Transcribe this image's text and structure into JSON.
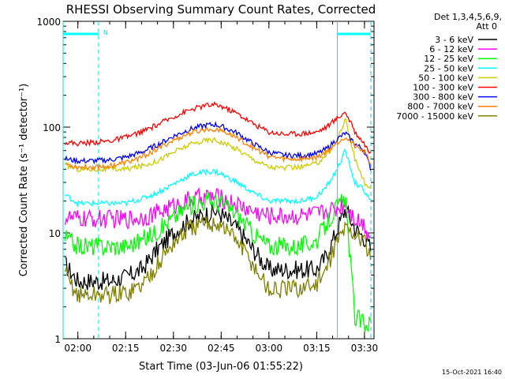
{
  "chart_data": {
    "type": "line",
    "title": "RHESSI Observing Summary Count Rates, Corrected",
    "xlabel": "Start Time (03-Jun-06 01:55:22)",
    "ylabel": "Corrected Count Rate (s⁻¹ detector⁻¹)",
    "yscale": "log",
    "ylim": [
      1,
      1000
    ],
    "xlim": [
      "01:55:22",
      "03:33:00"
    ],
    "grid": false,
    "legend_position": "right",
    "legend_header": [
      "Det 1,3,4,5,6,9,",
      "Att 0"
    ],
    "x_ticks": [
      "02:00",
      "02:15",
      "02:30",
      "02:45",
      "03:00",
      "03:15",
      "03:30"
    ],
    "y_ticks": [
      "1",
      "10",
      "100",
      "1000"
    ],
    "footer": "15-Oct-2021 16:40",
    "markers": {
      "vertical_lines": [
        "01:55:22",
        "02:06:30",
        "03:21:30",
        "03:32:00"
      ],
      "flag_label": "N",
      "flag_segments": [
        [
          "01:55:22",
          "02:06:30"
        ],
        [
          "03:21:30",
          "03:32:00"
        ]
      ]
    },
    "x": [
      "01:56",
      "02:00",
      "02:05",
      "02:10",
      "02:15",
      "02:20",
      "02:25",
      "02:30",
      "02:35",
      "02:40",
      "02:43",
      "02:45",
      "02:50",
      "02:55",
      "03:00",
      "03:05",
      "03:10",
      "03:15",
      "03:18",
      "03:21",
      "03:24",
      "03:27",
      "03:30",
      "03:32"
    ],
    "series": [
      {
        "name": "3 - 6 keV",
        "color": "#000000",
        "values": [
          5,
          3.5,
          3.5,
          3.5,
          3.8,
          4.5,
          7,
          10,
          13,
          15,
          16,
          15,
          11,
          7,
          4.5,
          4.5,
          4.5,
          4.5,
          6,
          10,
          17,
          11,
          9,
          7
        ]
      },
      {
        "name": "6 - 12 keV",
        "color": "#ff00ff",
        "values": [
          14,
          13.5,
          13.5,
          13.5,
          13.5,
          14,
          15.5,
          18,
          20.5,
          22,
          22,
          21,
          18.5,
          16,
          14.5,
          14.5,
          14.5,
          15,
          16,
          17,
          19,
          14,
          12,
          9
        ]
      },
      {
        "name": "12 - 25 keV",
        "color": "#00ff00",
        "values": [
          9,
          7.5,
          7.5,
          7.5,
          7.5,
          8.5,
          10.5,
          14,
          18,
          20,
          20,
          19,
          15,
          10,
          7.5,
          7.5,
          7.5,
          8.5,
          12,
          17,
          21,
          1.6,
          1.4,
          1.4
        ]
      },
      {
        "name": "25 - 50 keV",
        "color": "#00ffff",
        "values": [
          23,
          19,
          19,
          19,
          19,
          21,
          24,
          29,
          35,
          38,
          38,
          36,
          30,
          24,
          20,
          20,
          20,
          22,
          27,
          38,
          60,
          30,
          25,
          20
        ]
      },
      {
        "name": "50 - 100 keV",
        "color": "#cccc00",
        "values": [
          44,
          40,
          40,
          40,
          40,
          43,
          48,
          58,
          68,
          75,
          76,
          72,
          62,
          50,
          42,
          41,
          42,
          45,
          55,
          70,
          120,
          50,
          30,
          25
        ]
      },
      {
        "name": "100 - 300 keV",
        "color": "#ff0000",
        "values": [
          72,
          70,
          72,
          74,
          80,
          90,
          105,
          125,
          145,
          160,
          162,
          158,
          135,
          108,
          90,
          86,
          87,
          90,
          100,
          118,
          140,
          90,
          70,
          55
        ]
      },
      {
        "name": "300 - 800 keV",
        "color": "#0000ff",
        "values": [
          50,
          48,
          48,
          49,
          52,
          58,
          68,
          82,
          95,
          104,
          106,
          102,
          88,
          70,
          58,
          54,
          54,
          56,
          62,
          75,
          88,
          70,
          60,
          40
        ]
      },
      {
        "name": "800 - 7000 keV",
        "color": "#ff8000",
        "values": [
          45,
          42,
          42,
          43,
          46,
          52,
          62,
          75,
          87,
          95,
          96,
          93,
          80,
          64,
          53,
          50,
          50,
          52,
          58,
          70,
          82,
          66,
          58,
          45
        ]
      },
      {
        "name": "7000 - 15000 keV",
        "color": "#808000",
        "values": [
          4,
          2.6,
          2.6,
          2.6,
          2.7,
          3.2,
          5,
          8,
          11,
          12,
          12.5,
          12,
          8.5,
          5,
          2.9,
          2.9,
          3,
          3.3,
          4.5,
          8,
          11,
          10,
          8,
          6
        ]
      }
    ]
  }
}
